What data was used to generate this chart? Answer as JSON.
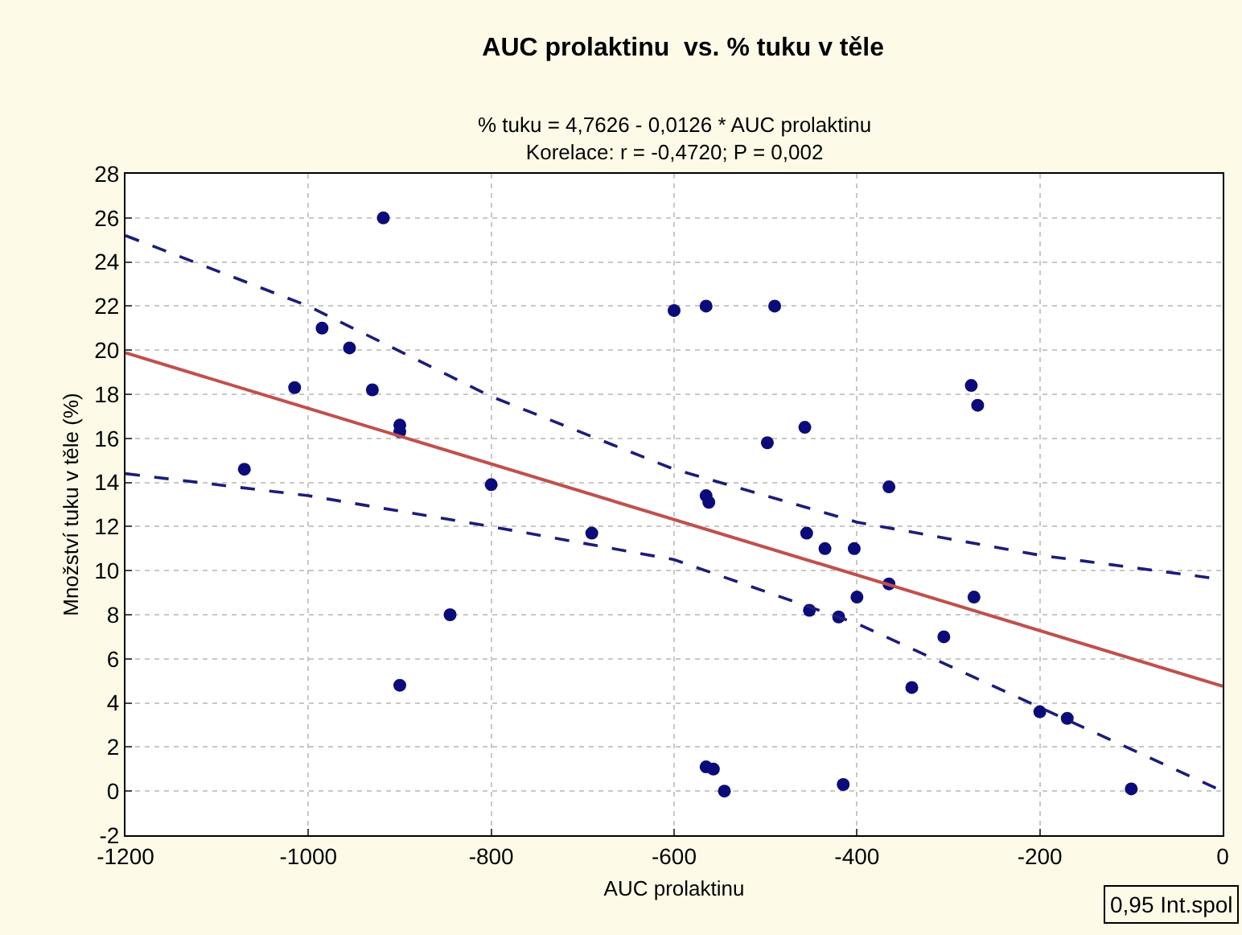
{
  "chart_data": {
    "type": "scatter",
    "title": "AUC prolaktinu  vs. % tuku v těle",
    "subtitle": "% tuku = 4,7626 - 0,0126 * AUC prolaktinu\nKorelace: r = -0,4720; P = 0,002",
    "xlabel": "AUC prolaktinu",
    "ylabel": "Množství tuku v těle (%)",
    "xlim": [
      -1200,
      0
    ],
    "xticks": [
      -1200,
      -1000,
      -800,
      -600,
      -400,
      -200,
      0
    ],
    "ylim": [
      -2,
      28
    ],
    "yticks": [
      -2,
      0,
      2,
      4,
      6,
      8,
      10,
      12,
      14,
      16,
      18,
      20,
      22,
      24,
      26,
      28
    ],
    "grid": true,
    "annotations": [
      "0,95 Int.spol"
    ],
    "series": [
      {
        "type": "scatter",
        "marker": "circle",
        "color": "#0b0b7a",
        "x": [
          -1070,
          -1015,
          -985,
          -955,
          -930,
          -918,
          -900,
          -900,
          -900,
          -845,
          -800,
          -690,
          -600,
          -565,
          -565,
          -562,
          -565,
          -557,
          -545,
          -490,
          -498,
          -457,
          -455,
          -452,
          -435,
          -420,
          -415,
          -403,
          -400,
          -365,
          -365,
          -340,
          -305,
          -275,
          -268,
          -272,
          -200,
          -170,
          -100
        ],
        "values": [
          14.6,
          18.3,
          21,
          20.1,
          18.2,
          26,
          16.6,
          16.3,
          4.8,
          8,
          13.9,
          11.7,
          21.8,
          22,
          13.4,
          13.1,
          1.1,
          1,
          0,
          22,
          15.8,
          16.5,
          11.7,
          8.2,
          11,
          7.9,
          0.3,
          11,
          8.8,
          13.8,
          9.4,
          4.7,
          7,
          18.4,
          17.5,
          8.8,
          3.6,
          3.3,
          0.1
        ]
      },
      {
        "type": "line",
        "marker": "none",
        "line_style": "solid",
        "color": "#c0504d",
        "x": [
          -1200,
          0
        ],
        "values": [
          19.88,
          4.76
        ]
      },
      {
        "type": "line",
        "marker": "none",
        "line_style": "dashed",
        "color": "#1c1c7a",
        "x": [
          -1200,
          -1000,
          -800,
          -600,
          -400,
          -200,
          0
        ],
        "values": [
          25.2,
          22,
          17.9,
          14.6,
          12.2,
          10.7,
          9.6
        ]
      },
      {
        "type": "line",
        "marker": "none",
        "line_style": "dashed",
        "color": "#1c1c7a",
        "x": [
          -1200,
          -1000,
          -800,
          -600,
          -400,
          -200,
          0
        ],
        "values": [
          14.4,
          13.4,
          12,
          10.5,
          7.6,
          3.8,
          0
        ]
      }
    ]
  }
}
